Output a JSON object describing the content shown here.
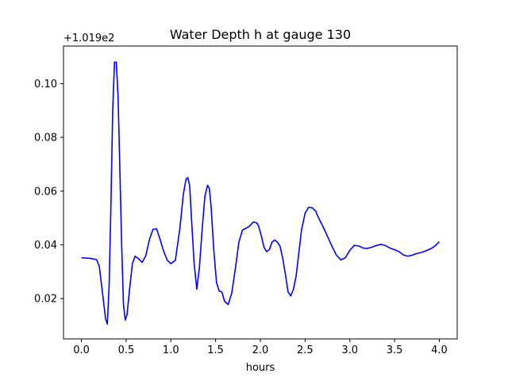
{
  "chart_data": {
    "type": "line",
    "title": "Water Depth h at gauge 130",
    "xlabel": "hours",
    "ylabel": "",
    "y_offset_label": "+1.019e2",
    "xlim": [
      -0.2,
      4.2
    ],
    "ylim": [
      0.005,
      0.114
    ],
    "x_ticks": [
      0.0,
      0.5,
      1.0,
      1.5,
      2.0,
      2.5,
      3.0,
      3.5,
      4.0
    ],
    "x_tick_labels": [
      "0.0",
      "0.5",
      "1.0",
      "1.5",
      "2.0",
      "2.5",
      "3.0",
      "3.5",
      "4.0"
    ],
    "y_ticks": [
      0.02,
      0.04,
      0.06,
      0.08,
      0.1
    ],
    "y_tick_labels": [
      "0.02",
      "0.04",
      "0.06",
      "0.08",
      "0.10"
    ],
    "grid": false,
    "series": [
      {
        "color": "#0000ff",
        "x": [
          0.0,
          0.1,
          0.17,
          0.2,
          0.24,
          0.27,
          0.29,
          0.31,
          0.33,
          0.35,
          0.37,
          0.39,
          0.41,
          0.43,
          0.45,
          0.47,
          0.49,
          0.51,
          0.54,
          0.57,
          0.6,
          0.64,
          0.68,
          0.72,
          0.76,
          0.8,
          0.84,
          0.88,
          0.92,
          0.96,
          1.0,
          1.05,
          1.1,
          1.14,
          1.17,
          1.19,
          1.21,
          1.23,
          1.26,
          1.29,
          1.32,
          1.35,
          1.38,
          1.41,
          1.43,
          1.45,
          1.48,
          1.51,
          1.54,
          1.57,
          1.6,
          1.64,
          1.68,
          1.72,
          1.76,
          1.8,
          1.84,
          1.88,
          1.92,
          1.96,
          1.98,
          2.01,
          2.04,
          2.07,
          2.1,
          2.13,
          2.16,
          2.19,
          2.22,
          2.25,
          2.28,
          2.31,
          2.34,
          2.37,
          2.4,
          2.43,
          2.46,
          2.5,
          2.54,
          2.58,
          2.62,
          2.64,
          2.67,
          2.7,
          2.75,
          2.8,
          2.85,
          2.9,
          2.95,
          3.0,
          3.05,
          3.1,
          3.15,
          3.2,
          3.25,
          3.3,
          3.35,
          3.4,
          3.45,
          3.5,
          3.55,
          3.6,
          3.65,
          3.7,
          3.75,
          3.8,
          3.85,
          3.9,
          3.95,
          4.0
        ],
        "y": [
          0.0352,
          0.035,
          0.0345,
          0.032,
          0.021,
          0.0125,
          0.0105,
          0.025,
          0.055,
          0.09,
          0.108,
          0.108,
          0.095,
          0.068,
          0.04,
          0.018,
          0.012,
          0.014,
          0.024,
          0.033,
          0.0358,
          0.0348,
          0.0335,
          0.036,
          0.042,
          0.0458,
          0.046,
          0.042,
          0.0375,
          0.0343,
          0.033,
          0.0342,
          0.046,
          0.059,
          0.0645,
          0.065,
          0.062,
          0.05,
          0.033,
          0.0235,
          0.032,
          0.046,
          0.058,
          0.0622,
          0.061,
          0.054,
          0.038,
          0.026,
          0.0228,
          0.0225,
          0.019,
          0.0178,
          0.022,
          0.031,
          0.041,
          0.0455,
          0.0462,
          0.047,
          0.0485,
          0.0482,
          0.047,
          0.0435,
          0.0392,
          0.0375,
          0.0382,
          0.041,
          0.0418,
          0.041,
          0.0395,
          0.035,
          0.029,
          0.0225,
          0.021,
          0.0235,
          0.0285,
          0.037,
          0.0455,
          0.0518,
          0.054,
          0.0538,
          0.0525,
          0.0508,
          0.0488,
          0.0468,
          0.0432,
          0.0395,
          0.0362,
          0.0344,
          0.0352,
          0.038,
          0.0398,
          0.0396,
          0.0388,
          0.0387,
          0.0392,
          0.0398,
          0.0402,
          0.0397,
          0.0388,
          0.0382,
          0.0375,
          0.0362,
          0.0358,
          0.0362,
          0.0368,
          0.0372,
          0.0378,
          0.0385,
          0.0395,
          0.0412
        ]
      }
    ]
  }
}
